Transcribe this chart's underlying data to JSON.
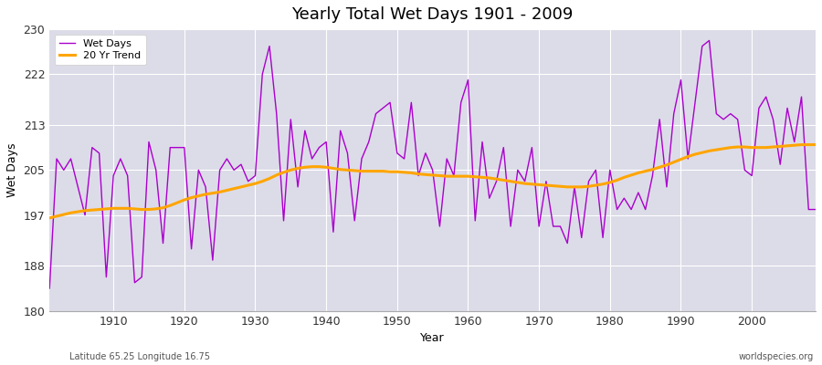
{
  "title": "Yearly Total Wet Days 1901 - 2009",
  "xlabel": "Year",
  "ylabel": "Wet Days",
  "bottom_left_text": "Latitude 65.25 Longitude 16.75",
  "bottom_right_text": "worldspecies.org",
  "wet_days_color": "#AA00CC",
  "trend_color": "#FFA500",
  "background_color": "#DCDCE8",
  "ylim": [
    180,
    230
  ],
  "xlim": [
    1901,
    2009
  ],
  "yticks": [
    180,
    188,
    197,
    205,
    213,
    222,
    230
  ],
  "xticks": [
    1910,
    1920,
    1930,
    1940,
    1950,
    1960,
    1970,
    1980,
    1990,
    2000
  ],
  "years": [
    1901,
    1902,
    1903,
    1904,
    1905,
    1906,
    1907,
    1908,
    1909,
    1910,
    1911,
    1912,
    1913,
    1914,
    1915,
    1916,
    1917,
    1918,
    1919,
    1920,
    1921,
    1922,
    1923,
    1924,
    1925,
    1926,
    1927,
    1928,
    1929,
    1930,
    1931,
    1932,
    1933,
    1934,
    1935,
    1936,
    1937,
    1938,
    1939,
    1940,
    1941,
    1942,
    1943,
    1944,
    1945,
    1946,
    1947,
    1948,
    1949,
    1950,
    1951,
    1952,
    1953,
    1954,
    1955,
    1956,
    1957,
    1958,
    1959,
    1960,
    1961,
    1962,
    1963,
    1964,
    1965,
    1966,
    1967,
    1968,
    1969,
    1970,
    1971,
    1972,
    1973,
    1974,
    1975,
    1976,
    1977,
    1978,
    1979,
    1980,
    1981,
    1982,
    1983,
    1984,
    1985,
    1986,
    1987,
    1988,
    1989,
    1990,
    1991,
    1992,
    1993,
    1994,
    1995,
    1996,
    1997,
    1998,
    1999,
    2000,
    2001,
    2002,
    2003,
    2004,
    2005,
    2006,
    2007,
    2008,
    2009
  ],
  "wet_days": [
    184,
    207,
    205,
    207,
    202,
    197,
    209,
    208,
    186,
    204,
    207,
    204,
    185,
    186,
    210,
    205,
    192,
    209,
    209,
    209,
    191,
    205,
    202,
    189,
    205,
    207,
    205,
    206,
    203,
    204,
    222,
    227,
    215,
    196,
    214,
    202,
    212,
    207,
    209,
    210,
    194,
    212,
    208,
    196,
    207,
    210,
    215,
    216,
    217,
    208,
    207,
    217,
    204,
    208,
    205,
    195,
    207,
    204,
    217,
    221,
    196,
    210,
    200,
    203,
    209,
    195,
    205,
    203,
    209,
    195,
    203,
    195,
    195,
    192,
    202,
    193,
    203,
    205,
    193,
    205,
    198,
    200,
    198,
    201,
    198,
    204,
    214,
    202,
    215,
    221,
    207,
    217,
    227,
    228,
    215,
    214,
    215,
    214,
    205,
    204,
    216,
    218,
    214,
    206,
    216,
    210,
    218,
    198,
    198
  ],
  "trend": [
    196.5,
    196.8,
    197.1,
    197.4,
    197.6,
    197.8,
    197.9,
    198.0,
    198.1,
    198.2,
    198.2,
    198.2,
    198.1,
    198.0,
    198.0,
    198.1,
    198.3,
    198.7,
    199.2,
    199.7,
    200.1,
    200.4,
    200.7,
    200.9,
    201.1,
    201.4,
    201.7,
    202.0,
    202.3,
    202.6,
    203.0,
    203.5,
    204.1,
    204.6,
    205.0,
    205.3,
    205.5,
    205.6,
    205.6,
    205.5,
    205.3,
    205.1,
    205.0,
    204.9,
    204.8,
    204.8,
    204.8,
    204.8,
    204.7,
    204.7,
    204.6,
    204.5,
    204.3,
    204.2,
    204.1,
    204.0,
    203.9,
    203.9,
    203.9,
    203.9,
    203.8,
    203.7,
    203.6,
    203.4,
    203.2,
    203.0,
    202.8,
    202.6,
    202.5,
    202.4,
    202.3,
    202.2,
    202.1,
    202.0,
    202.0,
    202.0,
    202.1,
    202.3,
    202.5,
    202.8,
    203.2,
    203.7,
    204.1,
    204.5,
    204.8,
    205.1,
    205.5,
    205.9,
    206.4,
    206.9,
    207.4,
    207.8,
    208.1,
    208.4,
    208.6,
    208.8,
    209.0,
    209.1,
    209.1,
    209.0,
    209.0,
    209.0,
    209.1,
    209.2,
    209.3,
    209.4,
    209.5,
    209.5,
    209.5
  ]
}
